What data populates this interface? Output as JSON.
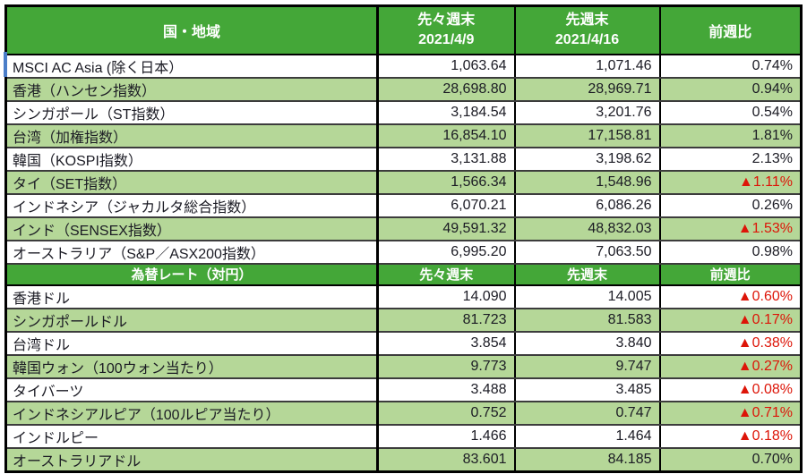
{
  "table": {
    "colors": {
      "header_bg": "#44a738",
      "header_text": "#ffffff",
      "row_alt_bg": "#b5d798",
      "row_bg": "#ffffff",
      "text": "#1b1b24",
      "negative": "#dd1508",
      "grid_line": "#3c3c3c",
      "frame": "#000000",
      "selection_blue": "#4a7dc8"
    },
    "sections": [
      {
        "header": {
          "col1": "国・地域",
          "col2_line1": "先々週末",
          "col2_line2": "2021/4/9",
          "col3_line1": "先週末",
          "col3_line2": "2021/4/16",
          "col4": "前週比"
        },
        "rows": [
          {
            "label": "MSCI AC Asia (除く日本）",
            "prev": "1,063.64",
            "last": "1,071.46",
            "change": "0.74%"
          },
          {
            "label": "香港（ハンセン指数）",
            "prev": "28,698.80",
            "last": "28,969.71",
            "change": "0.94%"
          },
          {
            "label": "シンガポール（ST指数）",
            "prev": "3,184.54",
            "last": "3,201.76",
            "change": "0.54%"
          },
          {
            "label": "台湾（加権指数）",
            "prev": "16,854.10",
            "last": "17,158.81",
            "change": "1.81%"
          },
          {
            "label": "韓国（KOSPI指数）",
            "prev": "3,131.88",
            "last": "3,198.62",
            "change": "2.13%"
          },
          {
            "label": "タイ（SET指数）",
            "prev": "1,566.34",
            "last": "1,548.96",
            "change": "▲1.11%"
          },
          {
            "label": "インドネシア（ジャカルタ総合指数）",
            "prev": "6,070.21",
            "last": "6,086.26",
            "change": "0.26%"
          },
          {
            "label": "インド（SENSEX指数）",
            "prev": "49,591.32",
            "last": "48,832.03",
            "change": "▲1.53%"
          },
          {
            "label": "オーストラリア（S&P／ASX200指数）",
            "prev": "6,995.20",
            "last": "7,063.50",
            "change": "0.98%"
          }
        ]
      },
      {
        "header": {
          "col1": "為替レート（対円）",
          "col2": "先々週末",
          "col3": "先週末",
          "col4": "前週比"
        },
        "rows": [
          {
            "label": "香港ドル",
            "prev": "14.090",
            "last": "14.005",
            "change": "▲0.60%"
          },
          {
            "label": "シンガポールドル",
            "prev": "81.723",
            "last": "81.583",
            "change": "▲0.17%"
          },
          {
            "label": "台湾ドル",
            "prev": "3.854",
            "last": "3.840",
            "change": "▲0.38%"
          },
          {
            "label": "韓国ウォン（100ウォン当たり）",
            "prev": "9.773",
            "last": "9.747",
            "change": "▲0.27%"
          },
          {
            "label": "タイバーツ",
            "prev": "3.488",
            "last": "3.485",
            "change": "▲0.08%"
          },
          {
            "label": "インドネシアルピア（100ルピア当たり）",
            "prev": "0.752",
            "last": "0.747",
            "change": "▲0.71%"
          },
          {
            "label": "インドルピー",
            "prev": "1.466",
            "last": "1.464",
            "change": "▲0.18%"
          },
          {
            "label": "オーストラリアドル",
            "prev": "83.601",
            "last": "84.185",
            "change": "0.70%"
          }
        ]
      }
    ]
  }
}
